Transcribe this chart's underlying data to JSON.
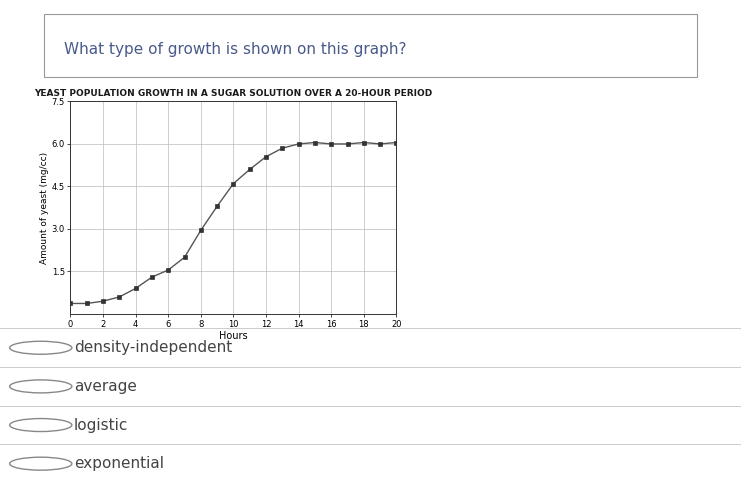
{
  "question_text": "What type of growth is shown on this graph?",
  "chart_title": "YEAST POPULATION GROWTH IN A SUGAR SOLUTION OVER A 20-HOUR PERIOD",
  "xlabel": "Hours",
  "ylabel": "Amount of yeast (mg/cc)",
  "xlim": [
    0,
    20
  ],
  "ylim": [
    0,
    7.5
  ],
  "yticks": [
    1.5,
    3.0,
    4.5,
    6.0,
    7.5
  ],
  "xticks": [
    0,
    2,
    4,
    6,
    8,
    10,
    12,
    14,
    16,
    18,
    20
  ],
  "x_data": [
    0,
    1,
    2,
    3,
    4,
    5,
    6,
    7,
    8,
    9,
    10,
    11,
    12,
    13,
    14,
    15,
    16,
    17,
    18,
    19,
    20
  ],
  "y_data": [
    0.37,
    0.37,
    0.45,
    0.6,
    0.9,
    1.3,
    1.55,
    2.0,
    2.95,
    3.8,
    4.6,
    5.1,
    5.55,
    5.85,
    6.0,
    6.05,
    6.0,
    6.0,
    6.05,
    6.0,
    6.05
  ],
  "line_color": "#555555",
  "marker_color": "#333333",
  "grid_color": "#bbbbbb",
  "title_color": "#1a1a1a",
  "question_color": "#4a5a8a",
  "choices": [
    "density-independent",
    "average",
    "logistic",
    "exponential"
  ],
  "choice_color": "#444444",
  "bg_color": "#ffffff",
  "chart_title_fontsize": 6.5,
  "question_fontsize": 11,
  "choice_fontsize": 11,
  "ylabel_fontsize": 6.5,
  "xlabel_fontsize": 7.0,
  "tick_fontsize": 6.0
}
